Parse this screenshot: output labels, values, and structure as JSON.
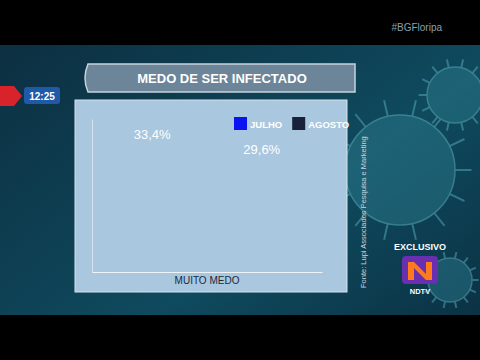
{
  "chart_data": {
    "type": "bar",
    "title": "MEDO DE SER INFECTADO",
    "categories": [
      "MUITO MEDO"
    ],
    "series": [
      {
        "name": "JULHO",
        "color": "#0a14f0",
        "values": [
          33.4
        ],
        "value_labels": [
          "33,4%"
        ]
      },
      {
        "name": "AGOSTO",
        "color": "#18203a",
        "values": [
          29.6
        ],
        "value_labels": [
          "29,6%"
        ]
      }
    ],
    "ylim": [
      0,
      40
    ],
    "data_labels": true,
    "legend": "top-right",
    "tick_labels": "x",
    "source": "Fonte: Lupi Associados Pesquisa e Marketing",
    "annotations": [
      "12:25",
      "#BGFloripa",
      "EXCLUSIVO",
      "NDTV"
    ]
  }
}
